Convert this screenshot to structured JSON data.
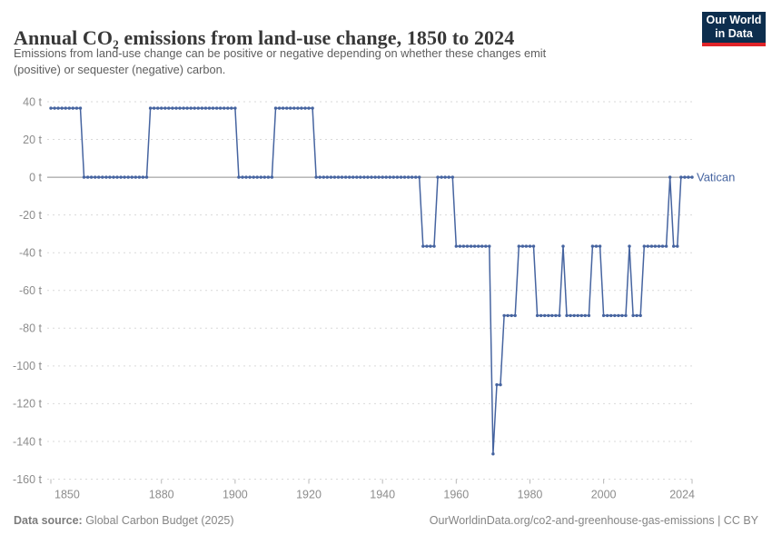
{
  "header": {
    "title": "Annual CO₂ emissions from land-use change, 1850 to 2024",
    "subtitle_line1": "Emissions from land-use change can be positive or negative depending on whether these changes emit",
    "subtitle_line2": "(positive) or sequester (negative) carbon.",
    "logo": {
      "line1": "Our World",
      "line2": "in Data",
      "bg_color": "#0d2e4e",
      "accent_color": "#e02428"
    }
  },
  "footer": {
    "source_label": "Data source:",
    "source_value": " Global Carbon Budget (2025)",
    "attribution": "OurWorldinData.org/co2-and-greenhouse-gas-emissions | CC BY"
  },
  "chart_data": {
    "type": "line",
    "title": "Annual CO₂ emissions from land-use change, 1850 to 2024",
    "entity_label": "Vatican",
    "xlabel": "",
    "ylabel": "",
    "xlim": [
      1850,
      2024
    ],
    "ylim": [
      -160,
      40
    ],
    "grid": "dashed horizontal",
    "legend_position": "right of line end",
    "unit": "t",
    "x_ticks": [
      "1850",
      "1880",
      "1900",
      "1920",
      "1940",
      "1960",
      "1980",
      "2000",
      "2024"
    ],
    "x_tick_values": [
      1850,
      1880,
      1900,
      1920,
      1940,
      1960,
      1980,
      2000,
      2024
    ],
    "y_ticks": [
      {
        "value": 40,
        "label": "40 t"
      },
      {
        "value": 20,
        "label": "20 t"
      },
      {
        "value": 0,
        "label": "0 t"
      },
      {
        "value": -20,
        "label": "-20 t"
      },
      {
        "value": -40,
        "label": "-40 t"
      },
      {
        "value": -60,
        "label": "-60 t"
      },
      {
        "value": -80,
        "label": "-80 t"
      },
      {
        "value": -100,
        "label": "-100 t"
      },
      {
        "value": -120,
        "label": "-120 t"
      },
      {
        "value": -140,
        "label": "-140 t"
      },
      {
        "value": -160,
        "label": "-160 t"
      }
    ],
    "series": [
      {
        "name": "Vatican",
        "color": "#4664a0",
        "segments": [
          {
            "from": 1850,
            "to": 1858,
            "value": 36.6
          },
          {
            "from": 1859,
            "to": 1876,
            "value": 0
          },
          {
            "from": 1877,
            "to": 1900,
            "value": 36.6
          },
          {
            "from": 1901,
            "to": 1910,
            "value": 0
          },
          {
            "from": 1911,
            "to": 1921,
            "value": 36.6
          },
          {
            "from": 1922,
            "to": 1950,
            "value": 0
          },
          {
            "from": 1951,
            "to": 1954,
            "value": -36.6
          },
          {
            "from": 1955,
            "to": 1959,
            "value": 0
          },
          {
            "from": 1960,
            "to": 1969,
            "value": -36.6
          },
          {
            "from": 1970,
            "to": 1970,
            "value": -146.6
          },
          {
            "from": 1971,
            "to": 1972,
            "value": -110
          },
          {
            "from": 1973,
            "to": 1976,
            "value": -73.3
          },
          {
            "from": 1977,
            "to": 1981,
            "value": -36.6
          },
          {
            "from": 1982,
            "to": 1988,
            "value": -73.3
          },
          {
            "from": 1989,
            "to": 1989,
            "value": -36.6
          },
          {
            "from": 1990,
            "to": 1996,
            "value": -73.3
          },
          {
            "from": 1997,
            "to": 1999,
            "value": -36.6
          },
          {
            "from": 2000,
            "to": 2006,
            "value": -73.3
          },
          {
            "from": 2007,
            "to": 2007,
            "value": -36.6
          },
          {
            "from": 2008,
            "to": 2010,
            "value": -73.3
          },
          {
            "from": 2011,
            "to": 2017,
            "value": -36.6
          },
          {
            "from": 2018,
            "to": 2018,
            "value": 0
          },
          {
            "from": 2019,
            "to": 2020,
            "value": -36.6
          },
          {
            "from": 2021,
            "to": 2024,
            "value": 0
          }
        ]
      }
    ],
    "colors": {
      "line": "#4664a0",
      "gridline": "#d9d9d9",
      "zero_line": "#8f8f8f",
      "axis_text": "#8c8c8c",
      "tick_mark": "#b8b8b8"
    }
  }
}
